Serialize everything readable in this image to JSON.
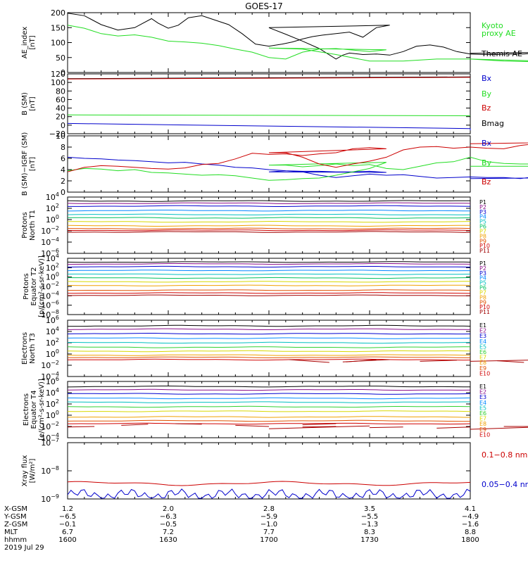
{
  "title": "GOES-17",
  "colors": {
    "black": "#000000",
    "green": "#22dd22",
    "red": "#cc0000",
    "blue": "#0000cc",
    "p_series": [
      "#000000",
      "#8a0c8a",
      "#0000d0",
      "#0088ff",
      "#00c0c0",
      "#00c060",
      "#d8d800",
      "#f0a000",
      "#e05000",
      "#d00000",
      "#a00000"
    ],
    "e_series": [
      "#000000",
      "#8a0c8a",
      "#0000d0",
      "#0088ff",
      "#00c0c0",
      "#30d030",
      "#d8d800",
      "#f0a000",
      "#e05000",
      "#d00000",
      "#a00000"
    ]
  },
  "chart_data": [
    {
      "id": "ae",
      "type": "line",
      "ylabel": "AE_index\n[nT]",
      "ylim": [
        0,
        200
      ],
      "yticks": [
        "200",
        "150",
        "100",
        "50",
        "0"
      ],
      "legend": [
        {
          "label": "Kyoto\nproxy AE",
          "color": "#22dd22"
        },
        {
          "label": "Themis AE",
          "color": "#000000"
        }
      ],
      "series": [
        {
          "name": "Themis AE",
          "color": "#000000",
          "x": [
            1600,
            1605,
            1610,
            1615,
            1620,
            1625,
            1627,
            1630,
            1633,
            1636,
            1640,
            1644,
            1648,
            1652,
            1656,
            1660,
            1664,
            1667,
            1670,
            1673,
            1676,
            1680,
            1684,
            1688,
            1692,
            1696,
            1700,
            1705,
            1710,
            1715,
            1720,
            1722,
            1724,
            1728,
            1732,
            1736,
            1740,
            1744,
            1748,
            1752,
            1756,
            1760,
            1764,
            1768,
            1772,
            1776,
            1780,
            1784,
            1788,
            1792,
            1796,
            1800
          ],
          "y": [
            198,
            190,
            160,
            142,
            150,
            180,
            165,
            148,
            158,
            183,
            190,
            175,
            160,
            130,
            95,
            88,
            95,
            102,
            112,
            120,
            125,
            130,
            135,
            118,
            150,
            158,
            150,
            128,
            105,
            80,
            45,
            58,
            65,
            60,
            62,
            58,
            70,
            88,
            92,
            85,
            70,
            62,
            60,
            60,
            62,
            62,
            65,
            66,
            66,
            70,
            70,
            64
          ]
        },
        {
          "name": "Kyoto proxy AE",
          "color": "#22dd22",
          "x": [
            1600,
            1605,
            1610,
            1615,
            1620,
            1625,
            1630,
            1635,
            1640,
            1645,
            1650,
            1655,
            1660,
            1665,
            1670,
            1675,
            1680,
            1685,
            1690,
            1695,
            1700,
            1710,
            1720,
            1730,
            1740,
            1750,
            1760,
            1770,
            1780,
            1790,
            1800
          ],
          "y": [
            158,
            148,
            130,
            122,
            126,
            118,
            105,
            102,
            98,
            90,
            78,
            68,
            50,
            45,
            68,
            78,
            80,
            75,
            70,
            76,
            82,
            78,
            60,
            38,
            38,
            45,
            45,
            38,
            36,
            35,
            45
          ]
        }
      ]
    },
    {
      "id": "bsm",
      "type": "line",
      "ylabel": "B (SM)\n[nT]",
      "ylim": [
        -20,
        120
      ],
      "yticks": [
        "120",
        "100",
        "80",
        "60",
        "40",
        "20",
        "0",
        "−20"
      ],
      "legend": [
        {
          "label": "Bx",
          "color": "#0000cc"
        },
        {
          "label": "By",
          "color": "#22dd22"
        },
        {
          "label": "Bz",
          "color": "#cc0000"
        },
        {
          "label": "Bmag",
          "color": "#000000"
        }
      ],
      "series": [
        {
          "name": "Bmag",
          "color": "#000000",
          "x": [
            1600,
            1800
          ],
          "y": [
            109,
            113
          ]
        },
        {
          "name": "Bz",
          "color": "#cc0000",
          "x": [
            1600,
            1800
          ],
          "y": [
            108,
            112
          ]
        },
        {
          "name": "By",
          "color": "#22dd22",
          "x": [
            1600,
            1700,
            1800
          ],
          "y": [
            24,
            23,
            22
          ]
        },
        {
          "name": "Bx",
          "color": "#0000cc",
          "x": [
            1600,
            1700,
            1760,
            1800
          ],
          "y": [
            4,
            -2,
            -8,
            -12
          ]
        }
      ]
    },
    {
      "id": "bdiff",
      "type": "line",
      "ylabel": "B (SM)−IGRF (SM)\n[nT]",
      "ylim": [
        0,
        10
      ],
      "yticks": [
        "10",
        "8",
        "6",
        "4",
        "2",
        "0"
      ],
      "legend": [
        {
          "label": "Bx",
          "color": "#0000cc"
        },
        {
          "label": "By",
          "color": "#22dd22"
        },
        {
          "label": "Bz",
          "color": "#cc0000"
        }
      ],
      "series": [
        {
          "name": "Bx",
          "color": "#0000cc",
          "x": [
            1600,
            1605,
            1610,
            1615,
            1620,
            1625,
            1630,
            1635,
            1640,
            1645,
            1650,
            1655,
            1660,
            1665,
            1670,
            1675,
            1680,
            1685,
            1690,
            1695,
            1700,
            1705,
            1710,
            1715,
            1720,
            1725,
            1730,
            1735,
            1740,
            1745,
            1750,
            1755,
            1760,
            1765,
            1770,
            1775,
            1780,
            1785,
            1790,
            1795,
            1800
          ],
          "y": [
            6.2,
            6.0,
            5.9,
            5.7,
            5.6,
            5.4,
            5.2,
            5.3,
            5.0,
            4.8,
            4.4,
            4.3,
            4.0,
            3.8,
            3.7,
            3.7,
            3.6,
            3.6,
            3.7,
            3.5,
            3.6,
            3.8,
            3.6,
            3.0,
            2.6,
            2.9,
            3.2,
            3.0,
            3.1,
            2.8,
            2.5,
            2.6,
            2.7,
            2.6,
            2.6,
            2.4,
            2.8,
            2.7,
            2.6,
            2.6,
            2.4
          ]
        },
        {
          "name": "By",
          "color": "#22dd22",
          "x": [
            1600,
            1605,
            1610,
            1615,
            1620,
            1625,
            1630,
            1635,
            1640,
            1645,
            1650,
            1655,
            1660,
            1665,
            1670,
            1675,
            1680,
            1685,
            1690,
            1695,
            1700,
            1705,
            1710,
            1715,
            1720,
            1725,
            1730,
            1735,
            1740,
            1745,
            1750,
            1755,
            1760,
            1765,
            1770,
            1775,
            1780,
            1785,
            1790,
            1795,
            1800
          ],
          "y": [
            3.8,
            4.2,
            4.1,
            3.8,
            4.0,
            3.5,
            3.4,
            3.2,
            3.0,
            3.1,
            2.9,
            2.5,
            2.1,
            2.2,
            2.4,
            2.5,
            3.0,
            3.6,
            4.2,
            5.3,
            4.8,
            4.8,
            4.5,
            4.7,
            5.0,
            4.7,
            4.9,
            4.2,
            4.0,
            4.6,
            5.2,
            5.4,
            6.2,
            5.4,
            5.1,
            5.0,
            5.0,
            4.9,
            4.5,
            4.6,
            4.6
          ]
        },
        {
          "name": "Bz",
          "color": "#cc0000",
          "x": [
            1600,
            1605,
            1610,
            1615,
            1620,
            1625,
            1630,
            1635,
            1640,
            1645,
            1650,
            1655,
            1660,
            1665,
            1670,
            1675,
            1680,
            1685,
            1690,
            1695,
            1700,
            1705,
            1710,
            1715,
            1720,
            1725,
            1730,
            1735,
            1740,
            1745,
            1750,
            1755,
            1760,
            1765,
            1770,
            1775,
            1780,
            1785,
            1790,
            1795,
            1800
          ],
          "y": [
            3.6,
            4.4,
            4.7,
            4.6,
            4.4,
            4.2,
            4.1,
            4.3,
            4.9,
            5.1,
            5.9,
            6.9,
            6.7,
            6.8,
            6.5,
            6.8,
            7.0,
            7.7,
            7.9,
            7.7,
            7.0,
            7.0,
            6.2,
            5.0,
            4.4,
            5.0,
            5.5,
            6.2,
            7.5,
            8.0,
            8.1,
            7.8,
            8.0,
            7.8,
            7.7,
            8.3,
            8.6,
            8.4,
            8.8,
            8.9,
            8.6
          ]
        }
      ]
    },
    {
      "id": "p_north",
      "type": "line",
      "log": true,
      "ylabel": "Protons\nNorth T1",
      "yrange_exp": [
        -6,
        4
      ],
      "ytick_exps": [
        4,
        2,
        0,
        -2,
        -4,
        -6
      ],
      "legend_labels": [
        "P1",
        "P2",
        "P3",
        "P4",
        "P5",
        "P6",
        "P7",
        "P8",
        "P9",
        "P10",
        "P11"
      ],
      "levels_exp": [
        3.3,
        2.9,
        2.4,
        1.6,
        0.9,
        0.3,
        -0.4,
        -1.1,
        -1.6,
        -1.9,
        -2.2
      ]
    },
    {
      "id": "p_equator",
      "type": "line",
      "log": true,
      "ylabel": "Protons\nEquator T2\n[p/(cm²-s-sr-keV)]",
      "yrange_exp": [
        -8,
        4
      ],
      "ytick_exps": [
        4,
        2,
        0,
        -2,
        -4,
        -6,
        -8
      ],
      "legend_labels": [
        "P1",
        "P2",
        "P3",
        "P4",
        "P5",
        "P6",
        "P7",
        "P8",
        "P9",
        "P10",
        "P11"
      ],
      "levels_exp": [
        3.2,
        2.8,
        2.2,
        1.4,
        0.6,
        -0.2,
        -1.0,
        -1.8,
        -2.8,
        -3.4,
        -3.9
      ]
    },
    {
      "id": "e_north",
      "type": "line",
      "log": true,
      "ylabel": "Electrons\nNorth T3",
      "yrange_exp": [
        -4,
        6
      ],
      "ytick_exps": [
        6,
        4,
        2,
        0,
        -2,
        -4
      ],
      "legend_labels": [
        "E1",
        "E2",
        "E3",
        "E4",
        "E5",
        "E6",
        "E7",
        "E8",
        "E9",
        "E10"
      ],
      "levels_exp": [
        5.0,
        4.4,
        3.6,
        2.8,
        2.0,
        1.2,
        0.5,
        -0.2,
        -0.6,
        -1.0
      ],
      "fragment_x": [
        1683,
        1692,
        1706,
        1718,
        1722,
        1736,
        1745,
        1756,
        1768,
        1776,
        1782,
        1790,
        1794,
        1800
      ],
      "fragment_exp": [
        -1.4,
        -1.0,
        -1.0,
        -1.5,
        -1.4,
        -1.0,
        -1.3,
        -1.1,
        -1.2,
        -1.5,
        -1.2,
        -1.0,
        -0.9,
        -1.3
      ]
    },
    {
      "id": "e_equator",
      "type": "line",
      "log": true,
      "ylabel": "Electrons\nEquator T4\n[e/(cm²-s-sr-keV)]",
      "yrange_exp": [
        -4,
        6
      ],
      "ytick_exps": [
        6,
        4,
        2,
        0,
        -2,
        -4
      ],
      "legend_labels": [
        "E1",
        "E2",
        "E3",
        "E4",
        "E5",
        "E6",
        "E7",
        "E8",
        "E9",
        "E10"
      ],
      "levels_exp": [
        5.1,
        4.5,
        3.8,
        3.0,
        2.3,
        1.5,
        0.7,
        -0.3,
        -1.0,
        -1.5
      ],
      "fragment_x": [
        1600,
        1608,
        1616,
        1624,
        1632,
        1640,
        1650,
        1660,
        1670,
        1680,
        1690,
        1700,
        1710,
        1720,
        1730,
        1740,
        1750,
        1760,
        1770,
        1780,
        1790,
        1800
      ],
      "fragment_exp": [
        -2.1,
        -2.0,
        -1.8,
        -1.6,
        -1.5,
        -1.6,
        -1.8,
        -2.0,
        -1.7,
        -1.5,
        -1.9,
        -2.4,
        -2.1,
        -2.0,
        -2.2,
        -2.1,
        -2.3,
        -2.1,
        -2.0,
        -2.0,
        -1.9,
        -2.5
      ]
    },
    {
      "id": "xray",
      "type": "line",
      "log": true,
      "ylabel": "Xray flux\n[W/m²]",
      "yrange_exp": [
        -9,
        -7
      ],
      "ytick_exps": [
        -7,
        -8,
        -9
      ],
      "legend": [
        {
          "label": "0.1−0.8 nm",
          "color": "#cc0000"
        },
        {
          "label": "0.05−0.4 nm",
          "color": "#0000cc"
        }
      ],
      "long_level_exp": -8.45,
      "short_level_exp": -8.85
    }
  ],
  "xaxis": {
    "rows": [
      {
        "label": "X-GSM",
        "values": [
          "1.2",
          "2.0",
          "2.8",
          "3.5",
          "4.1"
        ]
      },
      {
        "label": "Y-GSM",
        "values": [
          "−6.5",
          "−6.3",
          "−5.9",
          "−5.5",
          "−4.9"
        ]
      },
      {
        "label": "Z-GSM",
        "values": [
          "−0.1",
          "−0.5",
          "−1.0",
          "−1.3",
          "−1.6"
        ]
      },
      {
        "label": "MLT",
        "values": [
          "6.7",
          "7.2",
          "7.7",
          "8.3",
          "8.8"
        ]
      },
      {
        "label": "hhmm",
        "values": [
          "1600",
          "1630",
          "1700",
          "1730",
          "1800"
        ]
      }
    ],
    "date": "2019 Jul 29",
    "tick_times": [
      1600,
      1630,
      1700,
      1730,
      1800
    ]
  }
}
